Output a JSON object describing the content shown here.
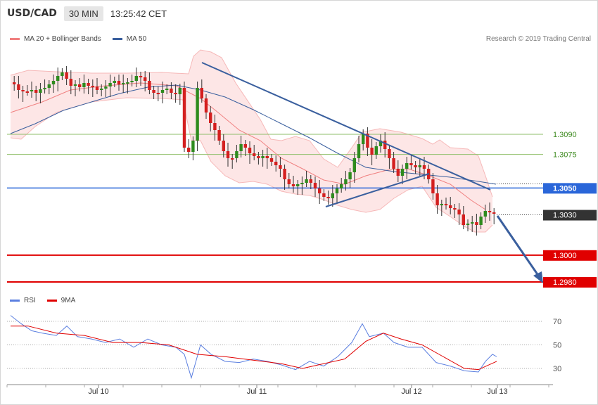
{
  "header": {
    "symbol": "USD/CAD",
    "timeframe": "30 MIN",
    "time": "13:25:42 CET"
  },
  "legend": {
    "ma20_bb": "MA 20 + Bollinger Bands",
    "ma50": "MA 50",
    "ma20_color": "#f08080",
    "ma50_color": "#3a5f9e"
  },
  "copyright": "Research © 2019 Trading Central",
  "rsi_legend": {
    "rsi": "RSI",
    "ma9": "9MA",
    "rsi_color": "#5b7fe0",
    "ma9_color": "#e00000"
  },
  "chart_data": [
    {
      "type": "candlestick",
      "title": "USD/CAD 30 MIN",
      "x_ticks": [
        "Jul 10",
        "Jul 11",
        "Jul 12",
        "Jul 13"
      ],
      "price_levels": [
        {
          "label": "1.3090",
          "value": 1.309,
          "kind": "resistance",
          "color": "#8fbf6a"
        },
        {
          "label": "1.3075",
          "value": 1.3075,
          "kind": "resistance",
          "color": "#8fbf6a"
        },
        {
          "label": "1.3050",
          "value": 1.305,
          "kind": "pivot",
          "color": "#2a66d9"
        },
        {
          "label": "1.3030",
          "value": 1.303,
          "kind": "last",
          "color": "#333333"
        },
        {
          "label": "1.3000",
          "value": 1.3,
          "kind": "support",
          "color": "#e00000"
        },
        {
          "label": "1.2980",
          "value": 1.298,
          "kind": "support",
          "color": "#e00000"
        }
      ],
      "series": [
        {
          "name": "MA 20 + Bollinger Bands",
          "color": "#f08080"
        },
        {
          "name": "MA 50",
          "color": "#3a5f9e"
        }
      ]
    },
    {
      "type": "line",
      "series": [
        {
          "name": "RSI"
        },
        {
          "name": "9MA"
        }
      ],
      "y_ticks": [
        "70",
        "50",
        "30"
      ],
      "ylim": [
        20,
        80
      ]
    }
  ]
}
